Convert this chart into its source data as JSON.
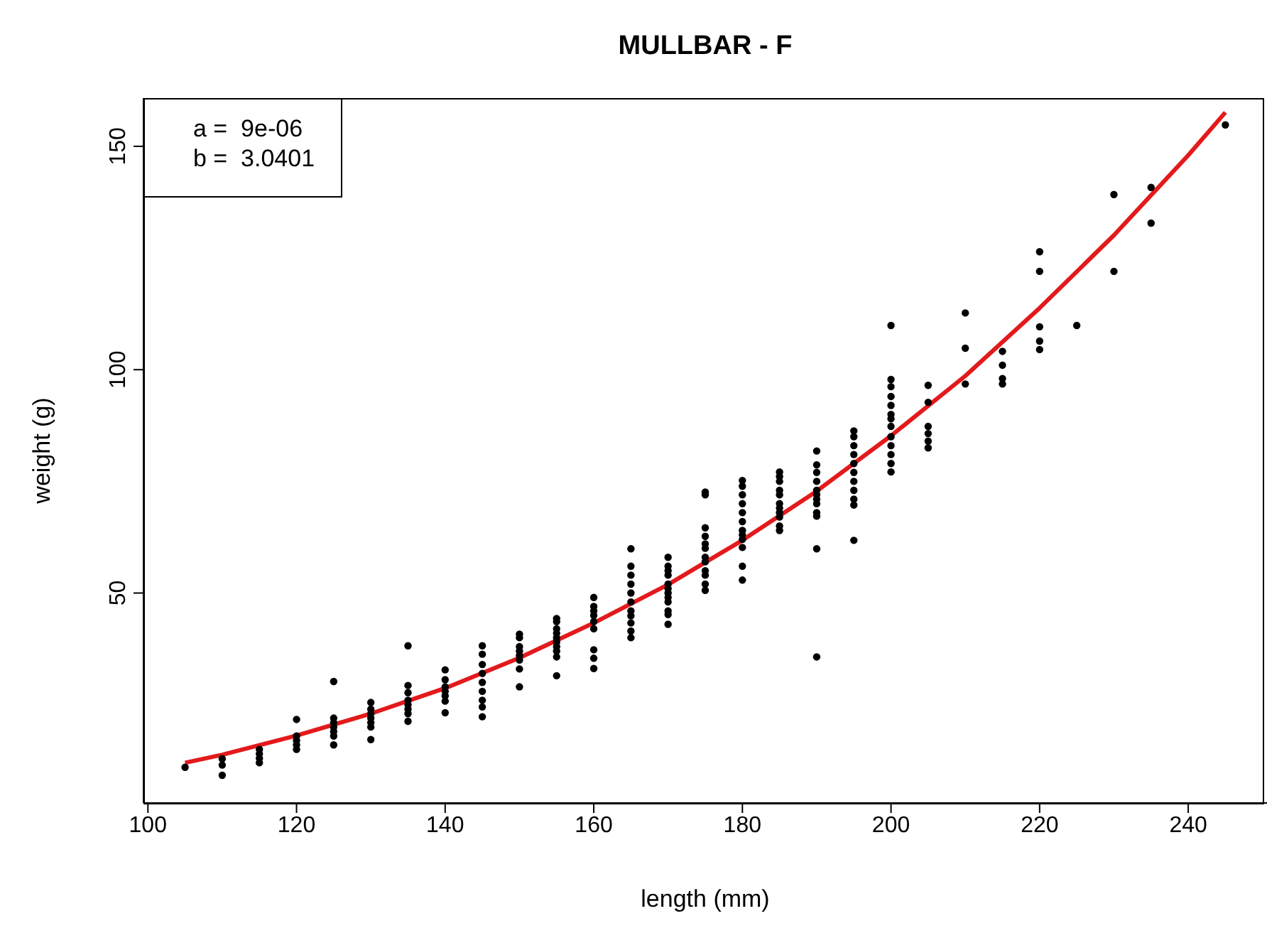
{
  "chart_data": {
    "type": "scatter",
    "title": "MULLBAR - F",
    "xlabel": "length (mm)",
    "ylabel": "weight (g)",
    "annotations": [
      "a =  9e-06",
      "b =  3.0401"
    ],
    "xlim": [
      99.4,
      250.6
    ],
    "xticks": [
      100,
      120,
      140,
      160,
      180,
      200,
      220,
      240
    ],
    "ylim": [
      3,
      160.8
    ],
    "yticks": [
      50,
      100,
      150
    ],
    "grid": false,
    "legend": false,
    "marker": "circle",
    "series": [
      {
        "color": "#000000",
        "x": [
          105,
          110,
          110,
          110,
          115,
          115,
          115,
          115,
          120,
          120,
          120,
          120,
          120,
          125,
          125,
          125,
          125,
          125,
          125,
          125,
          130,
          130,
          130,
          130,
          130,
          130,
          130,
          135,
          135,
          135,
          135,
          135,
          135,
          135,
          135,
          140,
          140,
          140,
          140,
          140,
          140,
          140,
          145,
          145,
          145,
          145,
          145,
          145,
          145,
          145,
          145,
          150,
          150,
          150,
          150,
          150,
          150,
          150,
          150,
          155,
          155,
          155,
          155,
          155,
          155,
          155,
          155,
          155,
          155,
          160,
          160,
          160,
          160,
          160,
          160,
          160,
          160,
          160,
          165,
          165,
          165,
          165,
          165,
          165,
          165,
          165,
          165,
          165,
          165,
          170,
          170,
          170,
          170,
          170,
          170,
          170,
          170,
          170,
          170,
          170,
          170,
          175,
          175,
          175,
          175,
          175,
          175,
          175,
          175,
          175,
          175,
          175,
          175,
          180,
          180,
          180,
          180,
          180,
          180,
          180,
          180,
          180,
          180,
          180,
          180,
          185,
          185,
          185,
          185,
          185,
          185,
          185,
          185,
          185,
          185,
          185,
          190,
          190,
          190,
          190,
          190,
          190,
          190,
          190,
          190,
          190,
          190,
          190,
          195,
          195,
          195,
          195,
          195,
          195,
          195,
          195,
          195,
          195,
          195,
          200,
          200,
          200,
          200,
          200,
          200,
          200,
          200,
          200,
          200,
          200,
          200,
          200,
          205,
          205,
          205,
          205,
          205,
          205,
          210,
          210,
          210,
          215,
          215,
          215,
          215,
          220,
          220,
          220,
          220,
          220,
          225,
          230,
          230,
          235,
          235,
          245
        ],
        "values": [
          11,
          12.9,
          11.5,
          9.2,
          15,
          14,
          13,
          12,
          21.7,
          18,
          17,
          16,
          15,
          30.2,
          22,
          21,
          20,
          19,
          18,
          16,
          25.5,
          24,
          23,
          22,
          21,
          20,
          17.2,
          38.2,
          29.3,
          27.7,
          26,
          25,
          24,
          23,
          21.3,
          32.8,
          30.6,
          29,
          28,
          27,
          25.8,
          23.2,
          38.2,
          36.3,
          34,
          32,
          30,
          28,
          26,
          24.5,
          22.3,
          40.8,
          40,
          38,
          37,
          36,
          35,
          33,
          29,
          44.3,
          43.6,
          42,
          41,
          40,
          39,
          38,
          37,
          35.7,
          31.5,
          49,
          47,
          46,
          45,
          43.6,
          42,
          37.3,
          35.4,
          33.1,
          59.9,
          56,
          54,
          52,
          50,
          48,
          46,
          44.9,
          43.3,
          41.5,
          40,
          58,
          56,
          55,
          54,
          52,
          51,
          50,
          49,
          48,
          46,
          45.2,
          43,
          72.6,
          72,
          64.6,
          62.7,
          61,
          60,
          58,
          57,
          55,
          54,
          52,
          50.6,
          75.2,
          73.9,
          72,
          70,
          68,
          66,
          64,
          63,
          62,
          60.2,
          56,
          52.9,
          77.1,
          76.1,
          75,
          73,
          72,
          70,
          69,
          68,
          67,
          65,
          64,
          81.8,
          78.7,
          77,
          75,
          73,
          72,
          71,
          70,
          68,
          67.2,
          59.9,
          35.7,
          86.3,
          85,
          83,
          81,
          79,
          77,
          75,
          73,
          71,
          69.7,
          61.8,
          109.9,
          97.8,
          96.2,
          94,
          92,
          90,
          89,
          87.3,
          85,
          83,
          81,
          79,
          77.1,
          96.5,
          92.7,
          87.3,
          85.7,
          84,
          82.5,
          112.7,
          104.8,
          96.8,
          104.1,
          101,
          98,
          96.8,
          126.4,
          122,
          109.6,
          106.4,
          104.5,
          109.9,
          139.2,
          122,
          140.8,
          132.8,
          154.8
        ]
      },
      {
        "type": "line",
        "color": "#e31a1c",
        "line_style": "solid",
        "marker": "none",
        "x": [
          105,
          110,
          120,
          130,
          140,
          150,
          160,
          170,
          180,
          190,
          200,
          210,
          220,
          230,
          240,
          245
        ],
        "values": [
          12.0,
          13.8,
          18.1,
          23.0,
          28.7,
          35.5,
          43.3,
          51.9,
          61.8,
          72.8,
          85.2,
          98.6,
          113.8,
          130.1,
          148.0,
          157.6
        ]
      }
    ]
  }
}
